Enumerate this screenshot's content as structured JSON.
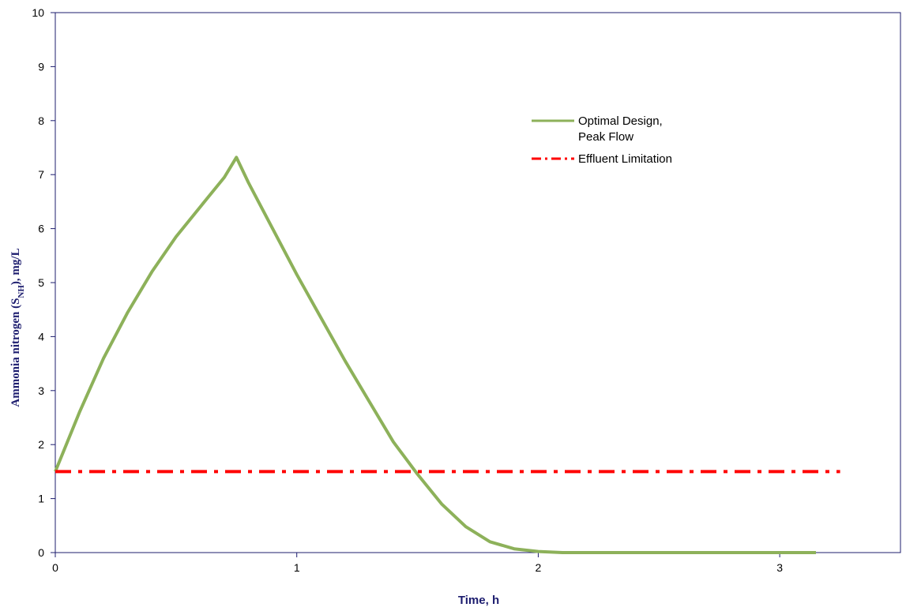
{
  "chart_data": {
    "type": "line",
    "xlabel": "Time, h",
    "ylabel": {
      "prefix": "Ammonia nitrogen (S",
      "subscript": "NH",
      "suffix": "), mg/L"
    },
    "xlim": [
      0,
      3.5
    ],
    "ylim": [
      0,
      10
    ],
    "xticks": [
      0,
      1,
      2,
      3
    ],
    "yticks": [
      0,
      1,
      2,
      3,
      4,
      5,
      6,
      7,
      8,
      9,
      10
    ],
    "grid": false,
    "legend_position": "upper-right",
    "series": [
      {
        "name": "Optimal Design, Peak Flow",
        "legend_lines": [
          "Optimal Design,",
          "Peak Flow"
        ],
        "color": "#8db15a",
        "style": "solid",
        "x": [
          0,
          0.1,
          0.2,
          0.3,
          0.4,
          0.5,
          0.6,
          0.7,
          0.75,
          0.8,
          0.9,
          1.0,
          1.1,
          1.2,
          1.3,
          1.4,
          1.5,
          1.6,
          1.7,
          1.8,
          1.9,
          2.0,
          2.1,
          2.2,
          2.3,
          2.5,
          2.75,
          3.0,
          3.15
        ],
        "y": [
          1.5,
          2.6,
          3.6,
          4.45,
          5.2,
          5.85,
          6.4,
          6.95,
          7.32,
          6.85,
          6.0,
          5.15,
          4.35,
          3.55,
          2.8,
          2.05,
          1.45,
          0.9,
          0.48,
          0.2,
          0.07,
          0.02,
          0.0,
          0.0,
          0.0,
          0.0,
          0.0,
          0.0,
          0.0
        ]
      },
      {
        "name": "Effluent Limitation",
        "legend_lines": [
          "Effluent Limitation"
        ],
        "color": "#ff0000",
        "style": "dashdot",
        "x": [
          0,
          3.25
        ],
        "y": [
          1.5,
          1.5
        ]
      }
    ]
  }
}
